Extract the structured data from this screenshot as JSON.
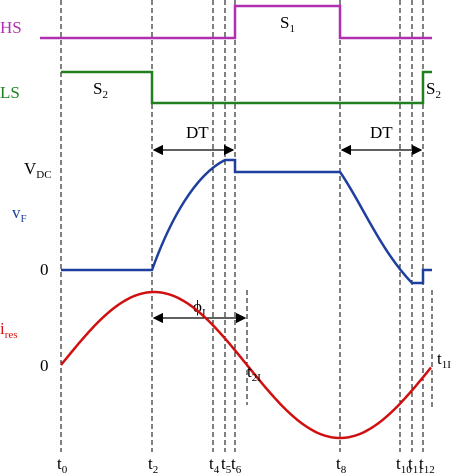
{
  "signals": {
    "hs": {
      "label": "HS",
      "pulse": {
        "main": "S",
        "sub": "1"
      }
    },
    "ls": {
      "label": "LS",
      "pulse_left": {
        "main": "S",
        "sub": "2"
      },
      "pulse_right": {
        "main": "S",
        "sub": "2"
      }
    },
    "vf": {
      "label": {
        "main": "v",
        "sub": "F"
      },
      "level_high": {
        "main": "V",
        "sub": "DC"
      },
      "level_zero": "0"
    },
    "ires": {
      "label": {
        "main": "i",
        "sub": "res"
      },
      "level_zero": "0"
    }
  },
  "annotations": {
    "dt_first": "DT",
    "dt_second": "DT",
    "phase": {
      "main": "ϕ",
      "sub": "I"
    },
    "t2i": {
      "main": "t",
      "sub": "2I"
    },
    "t1i": {
      "main": "t",
      "sub": "1I"
    }
  },
  "times": [
    {
      "main": "t",
      "sub": "0"
    },
    {
      "main": "t",
      "sub": "2"
    },
    {
      "main": "t",
      "sub": "4"
    },
    {
      "main": "t",
      "sub": "5"
    },
    {
      "main": "t",
      "sub": "6"
    },
    {
      "main": "t",
      "sub": "8"
    },
    {
      "main": "t",
      "sub": "10"
    },
    {
      "main": "t",
      "sub": "11"
    },
    {
      "main": "t",
      "sub": "12"
    }
  ]
}
